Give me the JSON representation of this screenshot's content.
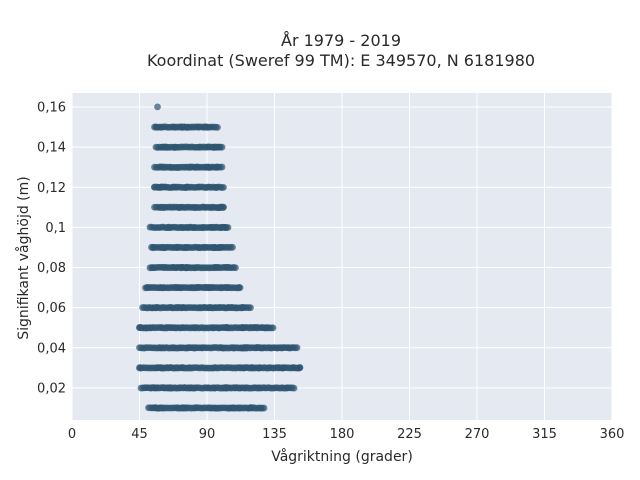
{
  "chart_data": {
    "type": "scatter",
    "title_line1": "År 1979 - 2019",
    "title_line2": "Koordinat (Sweref 99 TM): E 349570, N 6181980",
    "xlabel": "Vågriktning (grader)",
    "ylabel": "Signifikant våghöjd (m)",
    "xlim": [
      0,
      360
    ],
    "ylim": [
      0.004,
      0.167
    ],
    "x_ticks": [
      0,
      45,
      90,
      135,
      180,
      225,
      270,
      315,
      360
    ],
    "x_tick_labels": [
      "0",
      "45",
      "90",
      "135",
      "180",
      "225",
      "270",
      "315",
      "360"
    ],
    "y_ticks": [
      0.02,
      0.04,
      0.06,
      0.08,
      0.1,
      0.12,
      0.14,
      0.16
    ],
    "y_tick_labels": [
      "0,02",
      "0,04",
      "0,06",
      "0,08",
      "0,1",
      "0,12",
      "0,14",
      "0,16"
    ],
    "grid": true,
    "marker_color": "#2f5670",
    "plot_background": "#e5e9f2",
    "levels": [
      {
        "y": 0.01,
        "x_min": 51,
        "x_max": 128
      },
      {
        "y": 0.02,
        "x_min": 46,
        "x_max": 148
      },
      {
        "y": 0.03,
        "x_min": 45,
        "x_max": 152
      },
      {
        "y": 0.04,
        "x_min": 45,
        "x_max": 150
      },
      {
        "y": 0.05,
        "x_min": 45,
        "x_max": 134
      },
      {
        "y": 0.06,
        "x_min": 47,
        "x_max": 119
      },
      {
        "y": 0.07,
        "x_min": 49,
        "x_max": 112
      },
      {
        "y": 0.08,
        "x_min": 52,
        "x_max": 109
      },
      {
        "y": 0.09,
        "x_min": 53,
        "x_max": 107
      },
      {
        "y": 0.1,
        "x_min": 52,
        "x_max": 104
      },
      {
        "y": 0.11,
        "x_min": 55,
        "x_max": 101
      },
      {
        "y": 0.12,
        "x_min": 55,
        "x_max": 101
      },
      {
        "y": 0.13,
        "x_min": 55,
        "x_max": 100
      },
      {
        "y": 0.14,
        "x_min": 56,
        "x_max": 100
      },
      {
        "y": 0.15,
        "x_min": 55,
        "x_max": 97
      },
      {
        "y": 0.16,
        "x_min": 57,
        "x_max": 57
      }
    ]
  }
}
